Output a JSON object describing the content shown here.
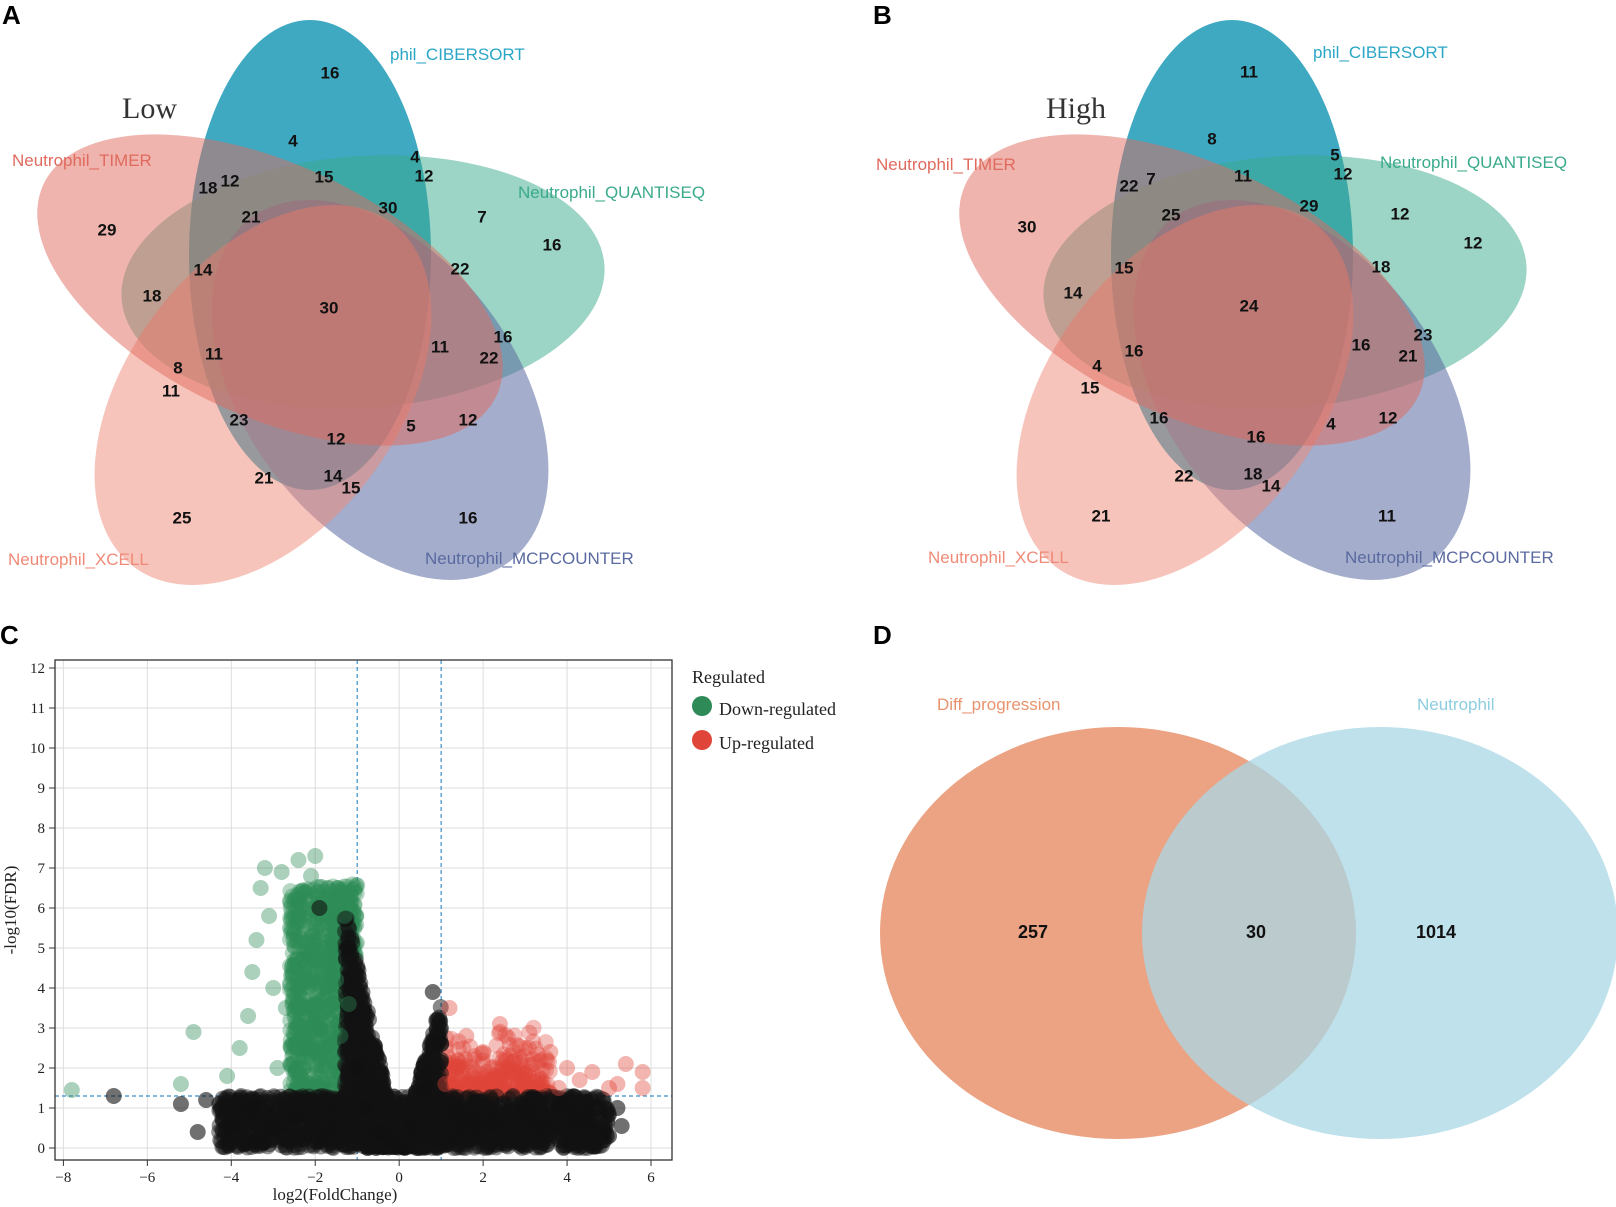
{
  "panels": {
    "A": {
      "label": "A",
      "title": "Low",
      "sets": {
        "cibersort": {
          "name": "phil_CIBERSORT",
          "color": "#1596b5"
        },
        "quantiseq": {
          "name": "Neutrophil_QUANTISEQ",
          "color": "#3aaa8c"
        },
        "mcpcounter": {
          "name": "Neutrophil_MCPCOUNTER",
          "color": "#5a6aa0"
        },
        "xcell": {
          "name": "Neutrophil_XCELL",
          "color": "#f08a78"
        },
        "timer": {
          "name": "Neutrophil_TIMER",
          "color": "#e06a5e"
        }
      },
      "region_counts": [
        "16",
        "4",
        "4",
        "12",
        "18",
        "15",
        "12",
        "21",
        "30",
        "7",
        "29",
        "16",
        "14",
        "22",
        "18",
        "30",
        "11",
        "16",
        "11",
        "22",
        "8",
        "11",
        "23",
        "12",
        "5",
        "12",
        "21",
        "14",
        "15",
        "25",
        "16"
      ]
    },
    "B": {
      "label": "B",
      "title": "High",
      "sets": {
        "cibersort": {
          "name": "phil_CIBERSORT",
          "color": "#1596b5"
        },
        "quantiseq": {
          "name": "Neutrophil_QUANTISEQ",
          "color": "#3aaa8c"
        },
        "mcpcounter": {
          "name": "Neutrophil_MCPCOUNTER",
          "color": "#5a6aa0"
        },
        "xcell": {
          "name": "Neutrophil_XCELL",
          "color": "#f08a78"
        },
        "timer": {
          "name": "Neutrophil_TIMER",
          "color": "#e06a5e"
        }
      },
      "region_counts": [
        "11",
        "8",
        "5",
        "12",
        "22",
        "7",
        "11",
        "25",
        "29",
        "12",
        "30",
        "12",
        "15",
        "18",
        "14",
        "24",
        "16",
        "16",
        "23",
        "21",
        "4",
        "15",
        "16",
        "16",
        "4",
        "12",
        "22",
        "18",
        "14",
        "21",
        "11"
      ]
    },
    "C": {
      "label": "C"
    },
    "D": {
      "label": "D",
      "left_label": "Diff_progression",
      "right_label": "Neutrophil",
      "left_color": "#e8936d",
      "right_color": "#a9d7e6",
      "left_only": "257",
      "both": "30",
      "right_only": "1014"
    }
  },
  "chart_data": [
    {
      "type": "scatter",
      "title": "",
      "xlabel": "log2(FoldChange)",
      "ylabel": "-log10(FDR)",
      "xlim": [
        -8.2,
        6.5
      ],
      "ylim": [
        -0.3,
        12.2
      ],
      "xticks": [
        -8,
        -6,
        -4,
        -2,
        0,
        2,
        4,
        6
      ],
      "yticks": [
        0,
        1,
        2,
        3,
        4,
        5,
        6,
        7,
        8,
        9,
        10,
        11,
        12
      ],
      "xtick_labels": [
        "−8",
        "−6",
        "−4",
        "−2",
        "0",
        "2",
        "4",
        "6"
      ],
      "ytick_labels": [
        "0",
        "1",
        "2",
        "3",
        "4",
        "5",
        "6",
        "7",
        "8",
        "9",
        "10",
        "11",
        "12"
      ],
      "thresholds": {
        "fc": [
          -1,
          1
        ],
        "fdr": 1.3
      },
      "legend": {
        "title": "Regulated",
        "position": "right",
        "entries": [
          "Down-regulated",
          "Up-regulated"
        ],
        "colors": [
          "#2e8b57",
          "#e0453a"
        ]
      },
      "series": [
        {
          "name": "Down-regulated",
          "color": "#2e8b57",
          "points": [
            [
              -7.8,
              1.45
            ],
            [
              -5.2,
              1.6
            ],
            [
              -4.9,
              2.9
            ],
            [
              -4.1,
              1.8
            ],
            [
              -3.8,
              2.5
            ],
            [
              -3.6,
              3.3
            ],
            [
              -3.5,
              4.4
            ],
            [
              -3.4,
              5.2
            ],
            [
              -3.3,
              6.5
            ],
            [
              -3.2,
              7.0
            ],
            [
              -3.1,
              5.8
            ],
            [
              -3.0,
              4.0
            ],
            [
              -2.9,
              2.0
            ],
            [
              -2.8,
              6.9
            ],
            [
              -2.7,
              3.5
            ],
            [
              -2.6,
              5.5
            ],
            [
              -2.5,
              6.2
            ],
            [
              -2.4,
              7.2
            ],
            [
              -2.3,
              4.7
            ],
            [
              -2.2,
              2.5
            ],
            [
              -2.1,
              6.8
            ],
            [
              -2.0,
              7.3
            ],
            [
              -1.9,
              3.0
            ],
            [
              -1.8,
              5.0
            ],
            [
              -1.7,
              6.5
            ],
            [
              -1.6,
              1.7
            ],
            [
              -1.5,
              4.2
            ],
            [
              -1.4,
              2.8
            ],
            [
              -1.3,
              5.8
            ],
            [
              -1.2,
              3.6
            ]
          ]
        },
        {
          "name": "Up-regulated",
          "color": "#e0453a",
          "points": [
            [
              1.1,
              1.6
            ],
            [
              1.2,
              3.5
            ],
            [
              1.4,
              2.2
            ],
            [
              1.6,
              2.8
            ],
            [
              1.8,
              1.9
            ],
            [
              2.0,
              2.4
            ],
            [
              2.2,
              1.7
            ],
            [
              2.4,
              3.1
            ],
            [
              2.6,
              2.0
            ],
            [
              2.8,
              1.8
            ],
            [
              3.0,
              2.5
            ],
            [
              3.2,
              2.1
            ],
            [
              3.4,
              1.6
            ],
            [
              3.6,
              2.4
            ],
            [
              3.8,
              1.5
            ],
            [
              4.0,
              2.0
            ],
            [
              4.3,
              1.7
            ],
            [
              4.6,
              1.9
            ],
            [
              5.0,
              1.5
            ],
            [
              5.2,
              1.6
            ],
            [
              5.4,
              2.1
            ],
            [
              5.8,
              1.9
            ],
            [
              5.8,
              1.5
            ]
          ]
        },
        {
          "name": "Not significant",
          "color": "#111111",
          "points": [
            [
              -6.8,
              1.3
            ],
            [
              -5.2,
              1.1
            ],
            [
              -4.8,
              0.4
            ],
            [
              -4.6,
              1.2
            ],
            [
              -4.0,
              0.6
            ],
            [
              -3.5,
              1.0
            ],
            [
              -3.0,
              0.5
            ],
            [
              -2.5,
              0.8
            ],
            [
              -1.9,
              6.0
            ],
            [
              -1.8,
              0.3
            ],
            [
              -1.2,
              5.0
            ],
            [
              -1.0,
              2.0
            ],
            [
              -0.8,
              1.0
            ],
            [
              -0.5,
              0.4
            ],
            [
              -0.2,
              0.2
            ],
            [
              0.0,
              0.05
            ],
            [
              0.3,
              0.5
            ],
            [
              0.6,
              1.5
            ],
            [
              0.8,
              3.9
            ],
            [
              1.0,
              2.6
            ],
            [
              1.5,
              0.8
            ],
            [
              2.2,
              0.6
            ],
            [
              3.0,
              0.9
            ],
            [
              3.8,
              1.1
            ],
            [
              4.3,
              0.7
            ],
            [
              4.6,
              0.9
            ],
            [
              5.0,
              0.3
            ],
            [
              5.2,
              1.0
            ],
            [
              5.3,
              0.55
            ]
          ]
        }
      ]
    },
    {
      "type": "venn",
      "title": "",
      "sets": [
        "Diff_progression",
        "Neutrophil"
      ],
      "values": {
        "Diff_progression_only": 257,
        "intersection": 30,
        "Neutrophil_only": 1014
      }
    }
  ]
}
